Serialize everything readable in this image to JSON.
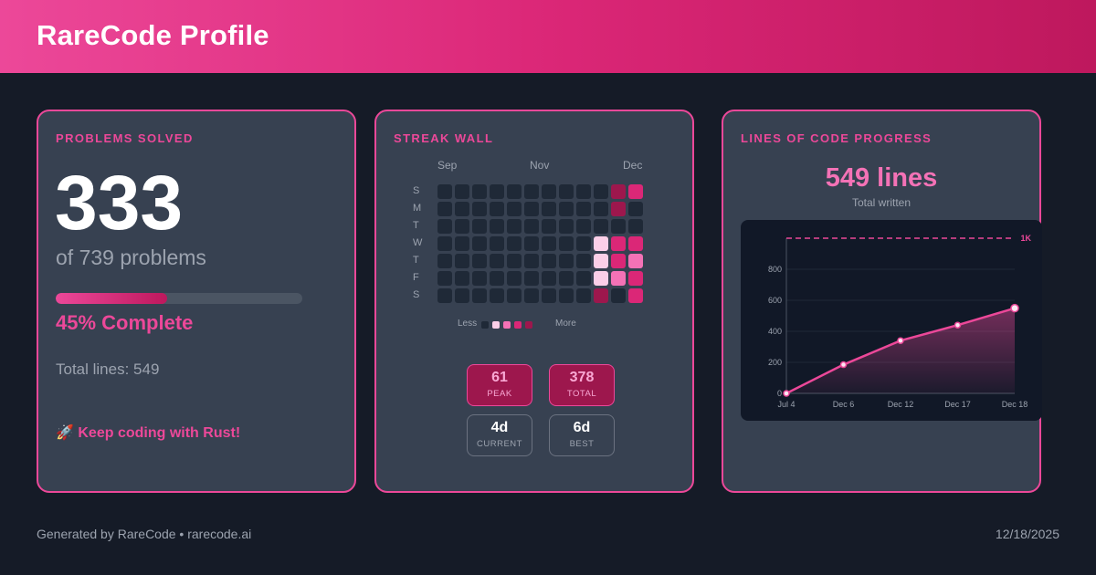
{
  "header": {
    "title": "RareCode Profile"
  },
  "problems": {
    "title": "PROBLEMS SOLVED",
    "solved": "333",
    "of_text": "of 739 problems",
    "progress": 0.45,
    "percent_text": "45% Complete",
    "total_lines_text": "Total lines: 549",
    "motto": "🚀 Keep coding with Rust!",
    "icon": "rocket-icon"
  },
  "streak": {
    "title": "STREAK WALL",
    "months": [
      "Sep",
      "Nov",
      "Dec"
    ],
    "days": [
      "S",
      "M",
      "T",
      "W",
      "T",
      "F",
      "S"
    ],
    "levels": [
      [
        0,
        0,
        0,
        0,
        0,
        0,
        0,
        0,
        0,
        0,
        4,
        3
      ],
      [
        0,
        0,
        0,
        0,
        0,
        0,
        0,
        0,
        0,
        0,
        4,
        0
      ],
      [
        0,
        0,
        0,
        0,
        0,
        0,
        0,
        0,
        0,
        0,
        0,
        0
      ],
      [
        0,
        0,
        0,
        0,
        0,
        0,
        0,
        0,
        0,
        1,
        3,
        3
      ],
      [
        0,
        0,
        0,
        0,
        0,
        0,
        0,
        0,
        0,
        1,
        3,
        2
      ],
      [
        0,
        0,
        0,
        0,
        0,
        0,
        0,
        0,
        0,
        1,
        2,
        3
      ],
      [
        0,
        0,
        0,
        0,
        0,
        0,
        0,
        0,
        0,
        4,
        0,
        3
      ]
    ],
    "legend_less": "Less",
    "legend_more": "More",
    "level_colors": [
      "#1f2937",
      "#fbcfe8",
      "#f472b6",
      "#db2777",
      "#9d174d"
    ],
    "stats": [
      {
        "value": "61",
        "label": "PEAK",
        "style": "pink"
      },
      {
        "value": "378",
        "label": "TOTAL",
        "style": "pink"
      },
      {
        "value": "4d",
        "label": "CURRENT",
        "style": "grey"
      },
      {
        "value": "6d",
        "label": "BEST",
        "style": "grey"
      }
    ]
  },
  "loc": {
    "title": "LINES OF CODE PROGRESS",
    "headline": "549 lines",
    "subtitle": "Total written"
  },
  "chart_data": {
    "type": "area",
    "x": [
      "Jul 4",
      "Dec 6",
      "Dec 12",
      "Dec 17",
      "Dec 18"
    ],
    "values": [
      0,
      185,
      340,
      440,
      549
    ],
    "ylim": [
      0,
      1000
    ],
    "yticks": [
      0,
      200,
      400,
      600,
      800
    ],
    "target": 1000,
    "target_label": "1K",
    "color": "#ec4899",
    "grid": true
  },
  "footer": {
    "left": "Generated by RareCode • rarecode.ai",
    "right": "12/18/2025"
  }
}
